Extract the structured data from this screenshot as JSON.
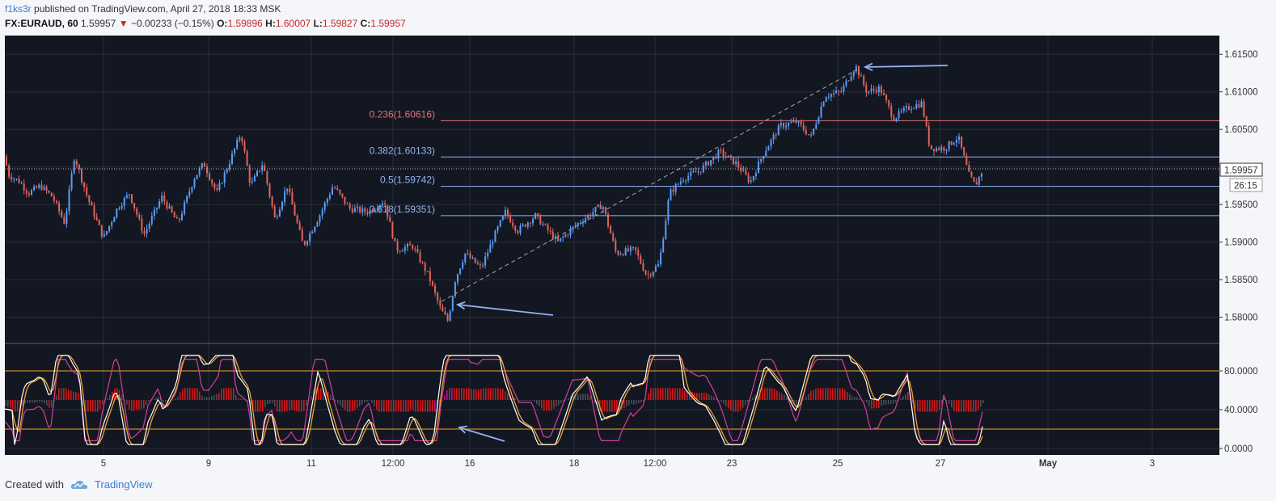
{
  "header": {
    "author": "f1ks3r",
    "published": " published on TradingView.com, April 27, 2018 18:33 MSK",
    "symbol": "FX:EURAUD, 60",
    "last": "1.59957",
    "change": "−0.00233 (−0.15%)",
    "o_label": "O:",
    "o": "1.59896",
    "h_label": "H:",
    "h": "1.60007",
    "l_label": "L:",
    "l": "1.59827",
    "c_label": "C:",
    "c": "1.59957"
  },
  "footer": {
    "created_with": "Created with",
    "brand": "TradingView"
  },
  "colors": {
    "bg": "#131722",
    "up": "#5b9cf6",
    "down": "#e0645c",
    "fib_top": "#e57373",
    "fib_line": "#90b4f0",
    "osc_level": "#f5a623",
    "stoch_k": "#ffffff",
    "stoch_d": "#f0a030",
    "rsi": "#d040a0"
  },
  "chart_data": [
    {
      "type": "candlestick",
      "title": "FX:EURAUD, 60",
      "ylim": [
        1.5765,
        1.6175
      ],
      "y_ticks": [
        "1.61500",
        "1.61000",
        "1.60500",
        "1.59957",
        "1.59500",
        "1.59000",
        "1.58500",
        "1.58000"
      ],
      "x_ticks": [
        "5",
        "9",
        "11",
        "12:00",
        "16",
        "18",
        "12:00",
        "23",
        "25",
        "27",
        "May",
        "3"
      ],
      "current_price_label": "1.59957",
      "countdown_label": "26:15",
      "close_path": [
        {
          "x": 0,
          "y": 1.605
        },
        {
          "x": 10,
          "y": 1.599
        },
        {
          "x": 25,
          "y": 1.598
        },
        {
          "x": 35,
          "y": 1.5965
        },
        {
          "x": 50,
          "y": 1.5975
        },
        {
          "x": 65,
          "y": 1.596
        },
        {
          "x": 80,
          "y": 1.5925
        },
        {
          "x": 92,
          "y": 1.6015
        },
        {
          "x": 108,
          "y": 1.596
        },
        {
          "x": 128,
          "y": 1.5905
        },
        {
          "x": 145,
          "y": 1.5945
        },
        {
          "x": 160,
          "y": 1.5965
        },
        {
          "x": 178,
          "y": 1.591
        },
        {
          "x": 200,
          "y": 1.596
        },
        {
          "x": 220,
          "y": 1.5925
        },
        {
          "x": 240,
          "y": 1.5985
        },
        {
          "x": 252,
          "y": 1.6005
        },
        {
          "x": 268,
          "y": 1.5965
        },
        {
          "x": 285,
          "y": 1.601
        },
        {
          "x": 298,
          "y": 1.6045
        },
        {
          "x": 310,
          "y": 1.5975
        },
        {
          "x": 325,
          "y": 1.6005
        },
        {
          "x": 340,
          "y": 1.593
        },
        {
          "x": 355,
          "y": 1.5975
        },
        {
          "x": 375,
          "y": 1.5895
        },
        {
          "x": 395,
          "y": 1.5935
        },
        {
          "x": 412,
          "y": 1.5975
        },
        {
          "x": 432,
          "y": 1.5945
        },
        {
          "x": 455,
          "y": 1.594
        },
        {
          "x": 475,
          "y": 1.5955
        },
        {
          "x": 490,
          "y": 1.589
        },
        {
          "x": 510,
          "y": 1.5895
        },
        {
          "x": 530,
          "y": 1.5855
        },
        {
          "x": 545,
          "y": 1.581
        },
        {
          "x": 554,
          "y": 1.5795
        },
        {
          "x": 563,
          "y": 1.585
        },
        {
          "x": 575,
          "y": 1.5885
        },
        {
          "x": 595,
          "y": 1.5865
        },
        {
          "x": 610,
          "y": 1.5905
        },
        {
          "x": 625,
          "y": 1.594
        },
        {
          "x": 640,
          "y": 1.5915
        },
        {
          "x": 662,
          "y": 1.5935
        },
        {
          "x": 690,
          "y": 1.59
        },
        {
          "x": 715,
          "y": 1.5925
        },
        {
          "x": 745,
          "y": 1.595
        },
        {
          "x": 762,
          "y": 1.5885
        },
        {
          "x": 785,
          "y": 1.589
        },
        {
          "x": 800,
          "y": 1.5855
        },
        {
          "x": 815,
          "y": 1.587
        },
        {
          "x": 828,
          "y": 1.5965
        },
        {
          "x": 845,
          "y": 1.5985
        },
        {
          "x": 865,
          "y": 1.5995
        },
        {
          "x": 890,
          "y": 1.602
        },
        {
          "x": 910,
          "y": 1.6005
        },
        {
          "x": 928,
          "y": 1.598
        },
        {
          "x": 945,
          "y": 1.602
        },
        {
          "x": 965,
          "y": 1.6055
        },
        {
          "x": 985,
          "y": 1.606
        },
        {
          "x": 1003,
          "y": 1.604
        },
        {
          "x": 1020,
          "y": 1.6095
        },
        {
          "x": 1040,
          "y": 1.61
        },
        {
          "x": 1058,
          "y": 1.6135
        },
        {
          "x": 1072,
          "y": 1.61
        },
        {
          "x": 1088,
          "y": 1.6105
        },
        {
          "x": 1105,
          "y": 1.6065
        },
        {
          "x": 1125,
          "y": 1.608
        },
        {
          "x": 1140,
          "y": 1.6085
        },
        {
          "x": 1150,
          "y": 1.6025
        },
        {
          "x": 1168,
          "y": 1.6025
        },
        {
          "x": 1185,
          "y": 1.604
        },
        {
          "x": 1198,
          "y": 1.599
        },
        {
          "x": 1206,
          "y": 1.5975
        },
        {
          "x": 1215,
          "y": 1.5996
        }
      ],
      "fibonacci": [
        {
          "label": "0.236(1.60616)",
          "price": 1.60616
        },
        {
          "label": "0.382(1.60133)",
          "price": 1.60133
        },
        {
          "label": "0.5(1.59742)",
          "price": 1.59742
        },
        {
          "label": "0.618(1.59351)",
          "price": 1.59351
        }
      ]
    },
    {
      "type": "line",
      "ylim": [
        0,
        100
      ],
      "y_ticks": [
        "80.0000",
        "40.0000",
        "0.0000"
      ],
      "levels": [
        80,
        20
      ]
    }
  ]
}
